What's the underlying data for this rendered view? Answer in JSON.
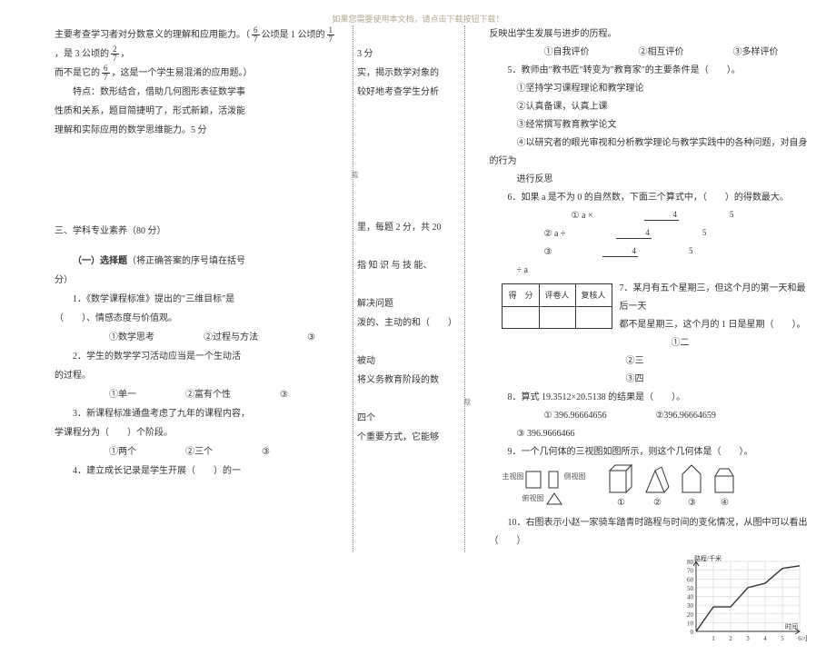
{
  "header_note": "如果您需要使用本文档，请点击下载按钮下载！",
  "left": {
    "p1a": "主要考查学习者对分数意义的理解和应用能力。（",
    "p1b": "公顷是 1 公顷的",
    "p1c": "，是 3 公顷的",
    "p1d": "，",
    "frac_6_7_n": "6",
    "frac_6_7_d": "7",
    "frac_1_7_n": "1",
    "frac_1_7_d": "7",
    "frac_2_7_n": "2",
    "frac_2_7_d": "7",
    "p2a": "而不是它的",
    "p2b": "，这是一个学生易混淆的应用题。）",
    "p3": "特点：数形结合，借助几何图形表征数学事",
    "p4": "性质和关系，题目简捷明了，形式新颖，活泼能",
    "p5": "理解和实际应用的数学思维能力。5 分",
    "gap_h": "86",
    "sec3": "三、学科专业素养（80 分）",
    "sel_title_a": "（一）选择题",
    "sel_title_b": "（将正确答案的序号填在括号",
    "sel_tail": "分）",
    "q1": "1．《数学课程标准》提出的\"三维目标\"是",
    "q1b": "（　　）、情感态度与价值观。",
    "q1opts_a": "①数学思考",
    "q1opts_b": "②过程与方法",
    "q1opts_c": "③",
    "q2": "2．学生的数学学习活动应当是一个生动活",
    "q2b": "的过程。",
    "q2opts_a": "①单一",
    "q2opts_b": "②富有个性",
    "q2opts_c": "③",
    "q3": "3．新课程标准通盘考虑了九年的课程内容，",
    "q3b": "学课程分为（　　）个阶段。",
    "q3opts_a": "①两个",
    "q3opts_b": "②三个",
    "q3opts_c": "③",
    "q4": "4．建立成长记录是学生开展（　　）的一"
  },
  "mid": {
    "m1": "3 分",
    "m2": "实，揭示数学对象的",
    "m3": "较好地考查学生分析",
    "m4": "里，每题 2 分，共 20",
    "m5": "指 知 识 与 技 能、",
    "m6": "解决问题",
    "m7": "泼的、主动的和（　　）",
    "m8": "被动",
    "m9": "将义务教育阶段的数",
    "m10": "四个",
    "m11": "个重要方式，它能够"
  },
  "right": {
    "r0": "反映出学生发展与进步的历程。",
    "r0a": "①自我评价",
    "r0b": "②相互评价",
    "r0c": "③多样评价",
    "r1": "5．教师由\"教书匠\"转变为\"教育家\"的主要条件是（　　）。",
    "r1a": "①坚持学习课程理论和教学理论",
    "r1b": "②认真备课，认真上课",
    "r1c": "③经常撰写教育教学论文",
    "r1d": "④以研究者的眼光审视和分析教学理论与教学实践中的各种问题，对自身的行为",
    "r1e": "进行反思",
    "r2": "6．如果 a 是不为 0 的自然数，下面三个算式中，（　　）的得数最大。",
    "r2a_pre": "①  a ×",
    "r2b_pre": "②  a ÷",
    "r2c_pre": "③ ",
    "frac_4_5_n": "4",
    "frac_4_5_d": "5",
    "r2c_post": " ÷ a",
    "score_h1": "得　分",
    "score_h2": "评卷人",
    "score_h3": "复核人",
    "r3": "7．某月有五个星期三，但这个月的第一天和最后一天",
    "r3b": "都不是星期三，这个月的 1 日是星期（　　）。",
    "r3o1": "①二",
    "r3o2": "②三",
    "r3o3": "③四",
    "r4": "8．算式 19.3512×20.5138 的结果是（　　）。",
    "r4o1": "① 396.96664656",
    "r4o2": "②396.96664659",
    "r4o3": "③ 396.9666466",
    "r5": "9．一个几何体的三视图如图所示，则这个几何体是（　　）。",
    "view_front": "主视图",
    "view_side": "侧视图",
    "view_top": "俯视图",
    "opt1": "①",
    "opt2": "②",
    "opt3": "③",
    "opt4": "④",
    "r6": "10．右图表示小赵一家骑车踏青时路程与时间的变化情况，从图中可以看出（　　）",
    "chart_ylabel": "路程/千米",
    "chart_xlabel": "时间",
    "chart_xunit": "/小时",
    "chart_yticks": [
      0,
      10,
      20,
      30,
      40,
      50,
      60,
      70,
      80
    ],
    "chart_xticks": [
      1,
      2,
      3,
      4,
      5,
      6
    ],
    "chart_points": [
      [
        0,
        0
      ],
      [
        1,
        28
      ],
      [
        2,
        28
      ],
      [
        3,
        50
      ],
      [
        4,
        55
      ],
      [
        5,
        72
      ],
      [
        6,
        75
      ]
    ],
    "chart_line_color": "#333",
    "chart_grid_color": "#ccc"
  }
}
